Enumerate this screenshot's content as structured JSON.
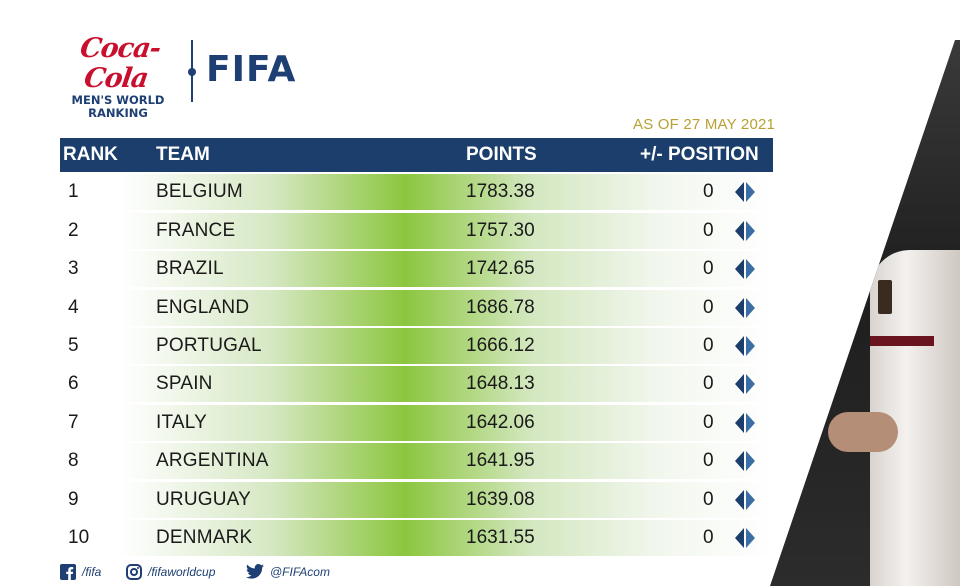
{
  "header": {
    "sponsor_logo": "Coca-Cola",
    "ranking_title_line1": "MEN'S WORLD",
    "ranking_title_line2": "RANKING",
    "fifa_logo": "FIFA",
    "as_of": "AS OF 27 MAY 2021"
  },
  "table": {
    "columns": {
      "rank": "RANK",
      "team": "TEAM",
      "points": "POINTS",
      "position": "+/- POSITION"
    },
    "rows": [
      {
        "rank": "1",
        "team": "BELGIUM",
        "points": "1783.38",
        "change": "0"
      },
      {
        "rank": "2",
        "team": "FRANCE",
        "points": "1757.30",
        "change": "0"
      },
      {
        "rank": "3",
        "team": "BRAZIL",
        "points": "1742.65",
        "change": "0"
      },
      {
        "rank": "4",
        "team": "ENGLAND",
        "points": "1686.78",
        "change": "0"
      },
      {
        "rank": "5",
        "team": "PORTUGAL",
        "points": "1666.12",
        "change": "0"
      },
      {
        "rank": "6",
        "team": "SPAIN",
        "points": "1648.13",
        "change": "0"
      },
      {
        "rank": "7",
        "team": "ITALY",
        "points": "1642.06",
        "change": "0"
      },
      {
        "rank": "8",
        "team": "ARGENTINA",
        "points": "1641.95",
        "change": "0"
      },
      {
        "rank": "9",
        "team": "URUGUAY",
        "points": "1639.08",
        "change": "0"
      },
      {
        "rank": "10",
        "team": "DENMARK",
        "points": "1631.55",
        "change": "0"
      }
    ]
  },
  "footer": {
    "facebook": "/fifa",
    "instagram": "/fifaworldcup",
    "twitter": "@FIFAcom"
  },
  "icons": {
    "position_change": "no-change-diamond-icon",
    "facebook": "facebook-icon",
    "instagram": "instagram-icon",
    "twitter": "twitter-icon"
  },
  "colors": {
    "header_bar": "#1b3e6d",
    "row_accent": "#8cc63f",
    "brand_red": "#c8102e",
    "date_gold": "#b9a033"
  }
}
